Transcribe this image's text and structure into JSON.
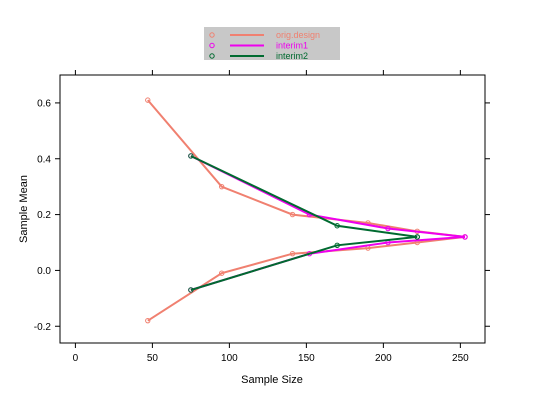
{
  "chart_data": {
    "type": "line",
    "title": "",
    "xlabel": "Sample Size",
    "ylabel": "Sample Mean",
    "xlim": [
      -10,
      266
    ],
    "ylim": [
      -0.26,
      0.7
    ],
    "x_ticks": [
      0,
      50,
      100,
      150,
      200,
      250
    ],
    "y_ticks": [
      -0.2,
      0.0,
      0.2,
      0.4,
      0.6
    ],
    "x_tick_labels": [
      "0",
      "50",
      "100",
      "150",
      "200",
      "250"
    ],
    "y_tick_labels": [
      "-0.2",
      "0.0",
      "0.2",
      "0.4",
      "0.6"
    ],
    "grid": false,
    "legend_position": "top",
    "series": [
      {
        "name": "orig.design",
        "color": "#f08070",
        "upper": [
          [
            47,
            0.61
          ],
          [
            95,
            0.3
          ],
          [
            141,
            0.2
          ],
          [
            190,
            0.17
          ],
          [
            222,
            0.14
          ],
          [
            253,
            0.12
          ]
        ],
        "lower": [
          [
            47,
            -0.18
          ],
          [
            95,
            -0.01
          ],
          [
            141,
            0.06
          ],
          [
            190,
            0.08
          ],
          [
            222,
            0.1
          ],
          [
            253,
            0.12
          ]
        ]
      },
      {
        "name": "interim1",
        "color": "#ee00ee",
        "upper": [
          [
            75,
            0.41
          ],
          [
            152,
            0.2
          ],
          [
            203,
            0.15
          ],
          [
            253,
            0.12
          ]
        ],
        "lower": [
          [
            75,
            -0.07
          ],
          [
            152,
            0.06
          ],
          [
            203,
            0.1
          ],
          [
            253,
            0.12
          ]
        ]
      },
      {
        "name": "interim2",
        "color": "#006a30",
        "upper": [
          [
            75,
            0.41
          ],
          [
            170,
            0.16
          ],
          [
            222,
            0.12
          ]
        ],
        "lower": [
          [
            75,
            -0.07
          ],
          [
            170,
            0.09
          ],
          [
            222,
            0.12
          ]
        ]
      }
    ]
  }
}
